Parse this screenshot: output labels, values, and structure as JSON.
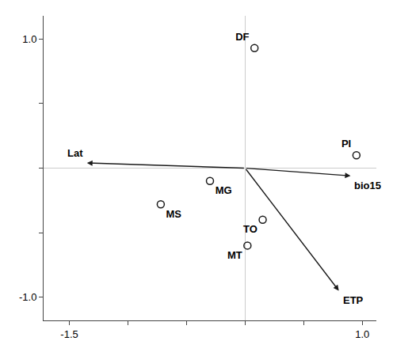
{
  "chart_data": {
    "type": "scatter",
    "labels": [
      "DF",
      "MG",
      "MS",
      "TO",
      "MT",
      "PI"
    ],
    "x": [
      0.08,
      -0.3,
      -0.72,
      0.15,
      0.02,
      0.95
    ],
    "y": [
      0.93,
      -0.1,
      -0.28,
      -0.4,
      -0.6,
      0.1
    ],
    "color": "#1a1a1a",
    "marker": "circle-open",
    "arrows": [
      {
        "label": "Lat",
        "x0": 0,
        "y0": 0,
        "x1": -1.35,
        "y1": 0.04
      },
      {
        "label": "bio15",
        "x0": 0,
        "y0": 0,
        "x1": 0.9,
        "y1": -0.06
      },
      {
        "label": "ETP",
        "x0": 0,
        "y0": 0,
        "x1": 0.8,
        "y1": -0.95
      }
    ],
    "xlim": [
      -1.72,
      1.12
    ],
    "ylim": [
      -1.18,
      1.18
    ],
    "xticks": [
      -1.5,
      {
        "value": -1.0,
        "label": ""
      },
      {
        "value": -0.5,
        "label": ""
      },
      {
        "value": 0.0,
        "label": ""
      },
      {
        "value": 0.5,
        "label": ""
      },
      {
        "value": 1.0,
        "label": "1.0"
      }
    ],
    "yticks": [
      {
        "value": -1.0,
        "label": "-1.0"
      },
      {
        "value": -0.5,
        "label": ""
      },
      {
        "value": 0.0,
        "label": ""
      },
      {
        "value": 0.5,
        "label": ""
      },
      {
        "value": 1.0,
        "label": "1.0"
      }
    ],
    "grid": false
  }
}
